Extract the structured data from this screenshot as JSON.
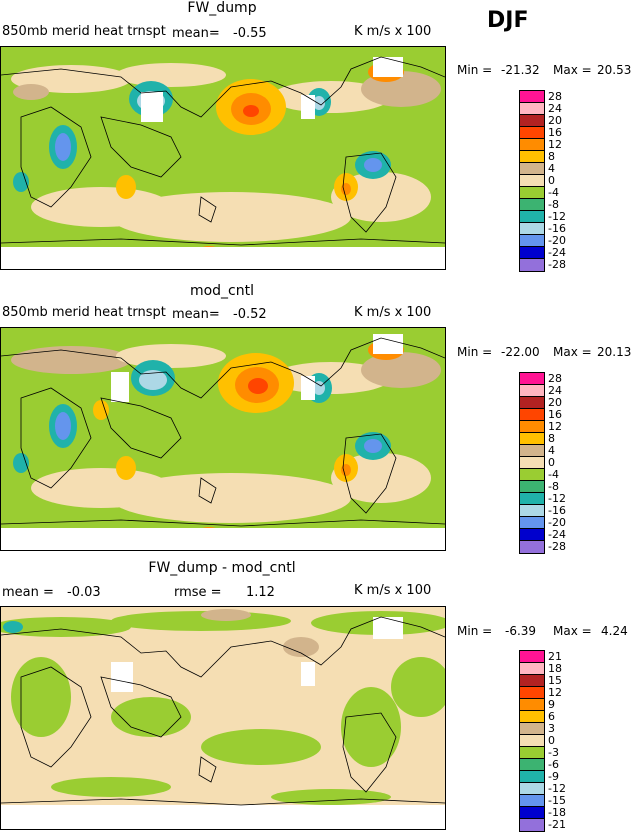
{
  "season": "DJF",
  "panels": [
    {
      "title": "FW_dump",
      "left_text": "850mb merid heat trnspt",
      "mean_label": "mean=",
      "mean_value": "-0.55",
      "rmse_label": "",
      "rmse_value": "",
      "units": "K m/s x 100",
      "min_label": "Min =",
      "min_value": "-21.32",
      "max_label": "Max =",
      "max_value": "20.53",
      "legend_labels": [
        "28",
        "24",
        "20",
        "16",
        "12",
        "8",
        "4",
        "0",
        "-4",
        "-8",
        "-12",
        "-16",
        "-20",
        "-24",
        "-28"
      ]
    },
    {
      "title": "mod_cntl",
      "left_text": "850mb merid heat trnspt",
      "mean_label": "mean=",
      "mean_value": "-0.52",
      "rmse_label": "",
      "rmse_value": "",
      "units": "K m/s x 100",
      "min_label": "Min =",
      "min_value": "-22.00",
      "max_label": "Max =",
      "max_value": "20.13",
      "legend_labels": [
        "28",
        "24",
        "20",
        "16",
        "12",
        "8",
        "4",
        "0",
        "-4",
        "-8",
        "-12",
        "-16",
        "-20",
        "-24",
        "-28"
      ]
    },
    {
      "title": "FW_dump - mod_cntl",
      "left_text": "",
      "mean_label": "mean =",
      "mean_value": "-0.03",
      "rmse_label": "rmse =",
      "rmse_value": "1.12",
      "units": "K m/s x 100",
      "min_label": "Min =",
      "min_value": "-6.39",
      "max_label": "Max =",
      "max_value": "4.24",
      "legend_labels": [
        "21",
        "18",
        "15",
        "12",
        "9",
        "6",
        "3",
        "0",
        "-3",
        "-6",
        "-9",
        "-12",
        "-15",
        "-18",
        "-21"
      ]
    }
  ],
  "legend_colors": [
    "#ff1493",
    "#ffb6c1",
    "#b22222",
    "#ff4500",
    "#ff8c00",
    "#ffc000",
    "#d2b48c",
    "#f5deb3",
    "#9acd32",
    "#3cb371",
    "#20b2aa",
    "#add8e6",
    "#6495ed",
    "#0000cd",
    "#9370db"
  ]
}
